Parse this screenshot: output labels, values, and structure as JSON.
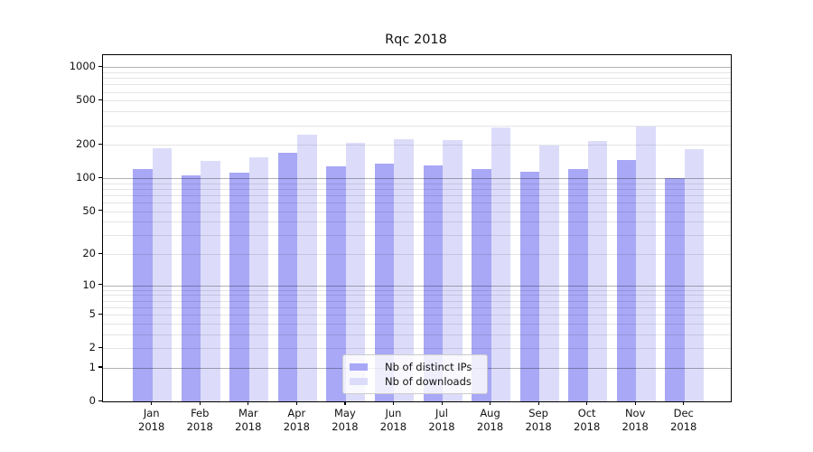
{
  "chart_data": {
    "type": "bar",
    "title": "Rqc 2018",
    "categories": [
      "Jan 2018",
      "Feb 2018",
      "Mar 2018",
      "Apr 2018",
      "May 2018",
      "Jun 2018",
      "Jul 2018",
      "Aug 2018",
      "Sep 2018",
      "Oct 2018",
      "Nov 2018",
      "Dec 2018"
    ],
    "series": [
      {
        "name": "Nb of distinct IPs",
        "color": "#a8a8f6",
        "values": [
          122,
          106,
          112,
          171,
          128,
          135,
          131,
          122,
          115,
          120,
          145,
          101
        ]
      },
      {
        "name": "Nb of downloads",
        "color": "#dcdcfa",
        "values": [
          185,
          143,
          155,
          247,
          209,
          225,
          219,
          288,
          196,
          218,
          292,
          183
        ]
      }
    ],
    "xlabel": "",
    "ylabel": "",
    "yscale": "log1p",
    "y_ticks": [
      0,
      1,
      2,
      5,
      10,
      20,
      50,
      100,
      200,
      500,
      1000
    ],
    "ylim": [
      0,
      1290
    ],
    "grid": "horizontal major+minor",
    "legend_position": "lower center"
  },
  "colors": {
    "bar_distinct_ips": "#a8a8f6",
    "bar_downloads": "#dcdcfa",
    "major_gridline": "#b3b3b3",
    "minor_gridline": "#e6e6e6",
    "axis": "#000000",
    "legend_border": "#cccccc",
    "background": "#ffffff"
  }
}
